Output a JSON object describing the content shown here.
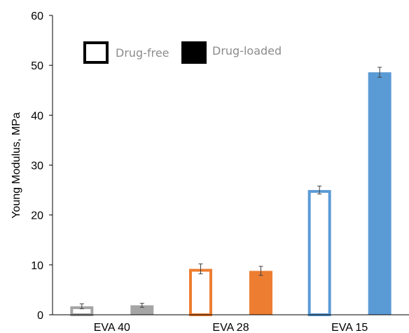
{
  "chart_data": {
    "type": "bar",
    "title": "",
    "xlabel": "",
    "ylabel": "Young Modulus, MPa",
    "ylim": [
      0,
      60
    ],
    "yticks": [
      0,
      10,
      20,
      30,
      40,
      50,
      60
    ],
    "grid": false,
    "legend_position": "top-left",
    "categories": [
      "EVA 40",
      "EVA 28",
      "EVA 15"
    ],
    "category_colors": [
      "#a5a5a5",
      "#ed7d31",
      "#5b9bd5"
    ],
    "series": [
      {
        "name": "Drug-free",
        "style": "outline",
        "values": [
          1.7,
          9.2,
          25.0
        ],
        "errors": [
          0.5,
          1.0,
          0.8
        ]
      },
      {
        "name": "Drug-loaded",
        "style": "filled",
        "values": [
          1.9,
          8.8,
          48.6
        ],
        "errors": [
          0.4,
          0.9,
          1.0
        ]
      }
    ]
  }
}
